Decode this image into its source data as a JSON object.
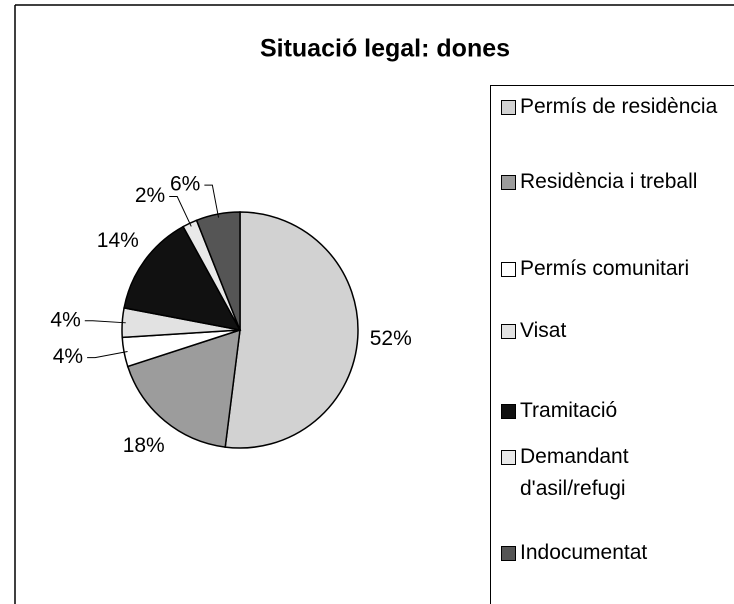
{
  "chart_data": {
    "type": "pie",
    "title": "Situació legal: dones",
    "categories": [
      "Permís de residència",
      "Residència i treball",
      "Permís comunitari",
      "Visat",
      "Tramitació",
      "Demandant d'asil/refugi",
      "Indocumentat"
    ],
    "values": [
      52,
      18,
      4,
      4,
      14,
      2,
      6
    ],
    "value_labels": [
      "52%",
      "18%",
      "4%",
      "4%",
      "14%",
      "2%",
      "6%"
    ],
    "colors": [
      "#d2d2d2",
      "#9c9c9c",
      "#ffffff",
      "#e2e2e2",
      "#111111",
      "#e9e9e9",
      "#555555"
    ],
    "legend": "right"
  }
}
